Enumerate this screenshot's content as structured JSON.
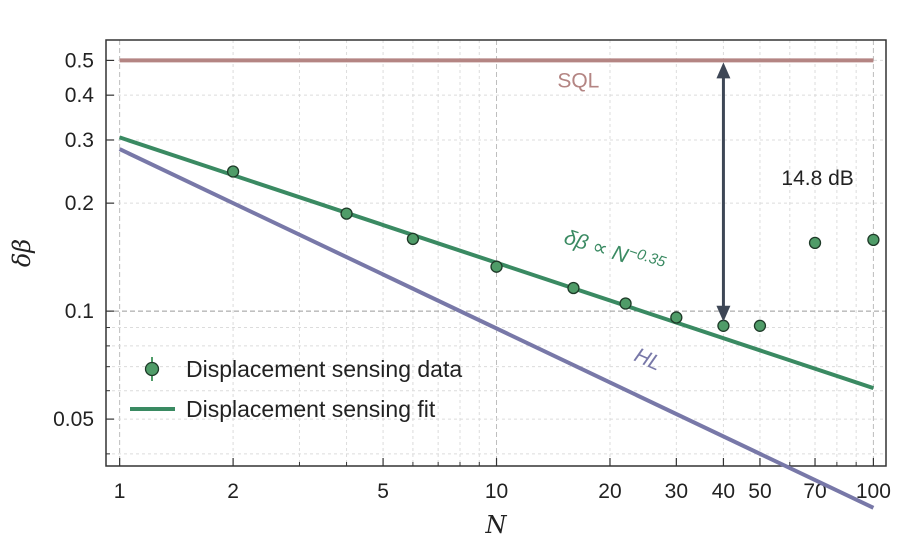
{
  "chart_data": {
    "type": "scatter",
    "xlabel": "N",
    "ylabel": "δβ",
    "xscale": "log",
    "yscale": "log",
    "xlim": [
      0.92,
      108
    ],
    "ylim": [
      0.037,
      0.57
    ],
    "grid": true,
    "legend_placement": "bottom-left",
    "x_ticks": [
      {
        "value": 1,
        "label": "1"
      },
      {
        "value": 2,
        "label": "2"
      },
      {
        "value": 5,
        "label": "5"
      },
      {
        "value": 10,
        "label": "10"
      },
      {
        "value": 20,
        "label": "20"
      },
      {
        "value": 30,
        "label": "30"
      },
      {
        "value": 40,
        "label": "40"
      },
      {
        "value": 50,
        "label": "50"
      },
      {
        "value": 70,
        "label": "70"
      },
      {
        "value": 100,
        "label": "100"
      }
    ],
    "y_ticks": [
      {
        "value": 0.05,
        "label": "0.05"
      },
      {
        "value": 0.1,
        "label": "0.1"
      },
      {
        "value": 0.2,
        "label": "0.2"
      },
      {
        "value": 0.3,
        "label": "0.3"
      },
      {
        "value": 0.4,
        "label": "0.4"
      },
      {
        "value": 0.5,
        "label": "0.5"
      }
    ],
    "series": [
      {
        "name": "Displacement sensing data",
        "kind": "points",
        "color": "#4f9c68",
        "x": [
          2,
          4,
          6,
          10,
          16,
          22,
          30,
          40,
          50,
          70,
          100
        ],
        "y": [
          0.245,
          0.187,
          0.159,
          0.133,
          0.116,
          0.105,
          0.096,
          0.091,
          0.091,
          0.155,
          0.158
        ]
      },
      {
        "name": "Displacement sensing fit",
        "kind": "line",
        "color": "#3a8a62",
        "x": [
          1,
          100
        ],
        "y": [
          0.305,
          0.061
        ]
      },
      {
        "kind": "line",
        "color": "#b48583",
        "x": [
          1,
          100
        ],
        "y": [
          0.5,
          0.5
        ]
      },
      {
        "kind": "line",
        "color": "#7878a8",
        "x": [
          1,
          100
        ],
        "y": [
          0.283,
          0.0283
        ]
      }
    ],
    "annotations": [
      {
        "text": "SQL",
        "color": "#b48583",
        "x": 14.5,
        "y": 0.42
      },
      {
        "text": "14.8 dB",
        "color": "#222222",
        "x": 57,
        "y": 0.225
      },
      {
        "text_prefix": "δβ ∝ N",
        "superscript": "−0.35",
        "color": "#3a8a62",
        "x": 15,
        "y": 0.155,
        "rotate_deg": 18
      },
      {
        "text": "HL",
        "color": "#7878a8",
        "x": 23,
        "y": 0.073,
        "rotate_deg": 24
      }
    ],
    "arrow": {
      "x": 40,
      "y_top": 0.5,
      "y_bottom": 0.091,
      "color": "#3e4756"
    }
  }
}
